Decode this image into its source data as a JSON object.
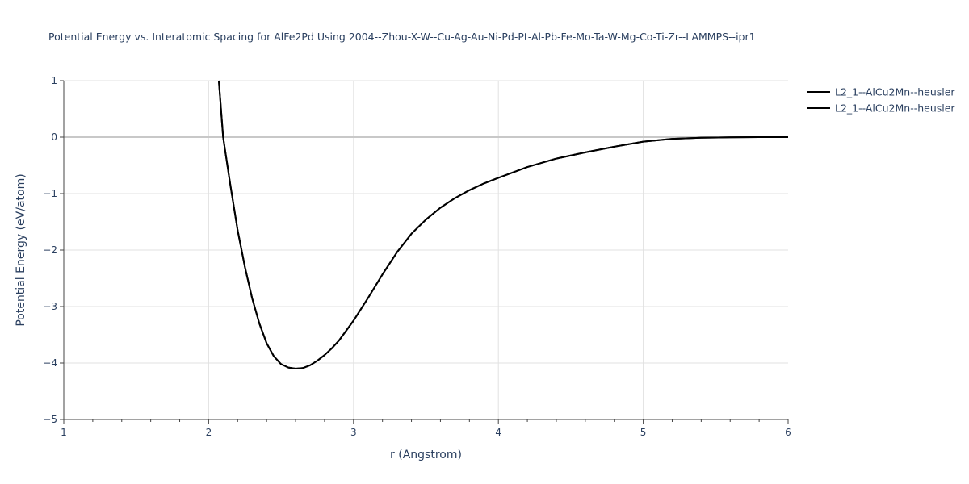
{
  "chart_data": {
    "type": "line",
    "title": "Potential Energy vs. Interatomic Spacing for AlFe2Pd Using 2004--Zhou-X-W--Cu-Ag-Au-Ni-Pd-Pt-Al-Pb-Fe-Mo-Ta-W-Mg-Co-Ti-Zr--LAMMPS--ipr1",
    "xlabel": "r (Angstrom)",
    "ylabel": "Potential Energy (eV/atom)",
    "xlim": [
      1,
      6
    ],
    "ylim": [
      -5,
      1
    ],
    "x_ticks": [
      "1",
      "2",
      "3",
      "4",
      "5",
      "6"
    ],
    "y_ticks": [
      "1",
      "0",
      "−1",
      "−2",
      "−3",
      "−4",
      "−5"
    ],
    "grid": true,
    "legend_position": "top-right",
    "line_color": "#000000",
    "series": [
      {
        "name": "L2_1--AlCu2Mn--heusler",
        "x": [
          2.07,
          2.1,
          2.15,
          2.2,
          2.25,
          2.3,
          2.35,
          2.4,
          2.45,
          2.5,
          2.55,
          2.6,
          2.65,
          2.7,
          2.75,
          2.8,
          2.85,
          2.9,
          3.0,
          3.1,
          3.2,
          3.3,
          3.4,
          3.5,
          3.6,
          3.7,
          3.8,
          3.9,
          4.0,
          4.2,
          4.4,
          4.6,
          4.8,
          5.0,
          5.2,
          5.4,
          5.6,
          5.8,
          6.0
        ],
        "y": [
          1.0,
          0.0,
          -0.85,
          -1.65,
          -2.3,
          -2.85,
          -3.3,
          -3.65,
          -3.88,
          -4.02,
          -4.08,
          -4.1,
          -4.09,
          -4.04,
          -3.96,
          -3.86,
          -3.74,
          -3.6,
          -3.25,
          -2.85,
          -2.43,
          -2.04,
          -1.71,
          -1.46,
          -1.25,
          -1.08,
          -0.94,
          -0.82,
          -0.72,
          -0.53,
          -0.38,
          -0.27,
          -0.17,
          -0.08,
          -0.03,
          -0.01,
          -0.005,
          0.0,
          0.0
        ]
      },
      {
        "name": "L2_1--AlCu2Mn--heusler",
        "x": [
          2.07,
          2.1,
          2.15,
          2.2,
          2.25,
          2.3,
          2.35,
          2.4,
          2.45,
          2.5,
          2.55,
          2.6,
          2.65,
          2.7,
          2.75,
          2.8,
          2.85,
          2.9,
          3.0,
          3.1,
          3.2,
          3.3,
          3.4,
          3.5,
          3.6,
          3.7,
          3.8,
          3.9,
          4.0,
          4.2,
          4.4,
          4.6,
          4.8,
          5.0,
          5.2,
          5.4,
          5.6,
          5.8,
          6.0
        ],
        "y": [
          1.0,
          0.0,
          -0.85,
          -1.65,
          -2.3,
          -2.85,
          -3.3,
          -3.65,
          -3.88,
          -4.02,
          -4.08,
          -4.1,
          -4.09,
          -4.04,
          -3.96,
          -3.86,
          -3.74,
          -3.6,
          -3.25,
          -2.85,
          -2.43,
          -2.04,
          -1.71,
          -1.46,
          -1.25,
          -1.08,
          -0.94,
          -0.82,
          -0.72,
          -0.53,
          -0.38,
          -0.27,
          -0.17,
          -0.08,
          -0.03,
          -0.01,
          -0.005,
          0.0,
          0.0
        ]
      }
    ]
  }
}
